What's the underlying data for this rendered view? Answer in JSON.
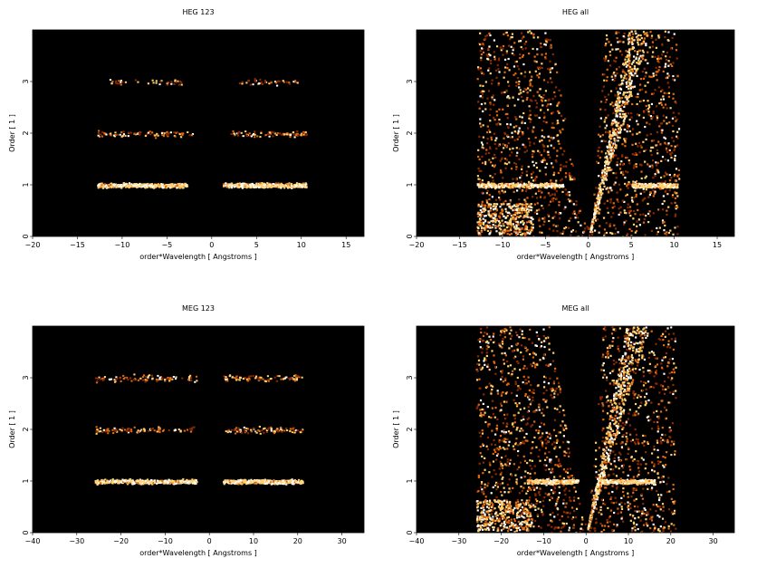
{
  "chart_data": [
    {
      "type": "heatmap",
      "title": "HEG 123",
      "xlabel": "order*Wavelength [ Angstroms ]",
      "ylabel": "Order [ 1 ]",
      "xlim": [
        -20,
        17
      ],
      "ylim": [
        0,
        4
      ],
      "xticks": [
        -20,
        -15,
        -10,
        -5,
        0,
        5,
        10,
        15
      ],
      "yticks": [
        0,
        1,
        2,
        3
      ],
      "background": "#000000",
      "bands": [
        {
          "order": 1,
          "x_ranges": [
            [
              -12.8,
              -2.8
            ],
            [
              1.2,
              10.5
            ]
          ],
          "density": "high"
        },
        {
          "order": 2,
          "x_ranges": [
            [
              -12.8,
              -2.2
            ],
            [
              2.0,
              10.5
            ]
          ],
          "density": "low"
        },
        {
          "order": 3,
          "x_ranges": [
            [
              -11.5,
              -3.0
            ],
            [
              3.0,
              9.5
            ]
          ],
          "density": "very-low"
        }
      ]
    },
    {
      "type": "heatmap",
      "title": "HEG all",
      "xlabel": "order*Wavelength [ Angstroms ]",
      "ylabel": "Order [ 1 ]",
      "xlim": [
        -20,
        17
      ],
      "ylim": [
        0,
        4
      ],
      "xticks": [
        -20,
        -15,
        -10,
        -5,
        0,
        5,
        10,
        15
      ],
      "yticks": [
        0,
        1,
        2,
        3
      ],
      "background": "#000000",
      "bands": [
        {
          "order": 1,
          "x_ranges": [
            [
              -13,
              -3
            ],
            [
              5,
              10.3
            ]
          ],
          "density": "high"
        }
      ],
      "fill_region_x": [
        -13,
        10.5
      ]
    },
    {
      "type": "heatmap",
      "title": "MEG 123",
      "xlabel": "order*Wavelength [ Angstroms ]",
      "ylabel": "Order [ 1 ]",
      "xlim": [
        -40,
        35
      ],
      "ylim": [
        0,
        4
      ],
      "xticks": [
        -40,
        -30,
        -20,
        -10,
        0,
        10,
        20,
        30
      ],
      "yticks": [
        0,
        1,
        2,
        3
      ],
      "background": "#000000",
      "bands": [
        {
          "order": 1,
          "x_ranges": [
            [
              -26,
              -3
            ],
            [
              3,
              21
            ]
          ],
          "density": "high"
        },
        {
          "order": 2,
          "x_ranges": [
            [
              -26,
              -3
            ],
            [
              3,
              21
            ]
          ],
          "density": "low"
        },
        {
          "order": 3,
          "x_ranges": [
            [
              -26,
              -3
            ],
            [
              3,
              21
            ]
          ],
          "density": "low"
        }
      ]
    },
    {
      "type": "heatmap",
      "title": "MEG all",
      "xlabel": "order*Wavelength [ Angstroms ]",
      "ylabel": "Order [ 1 ]",
      "xlim": [
        -40,
        35
      ],
      "ylim": [
        0,
        4
      ],
      "xticks": [
        -40,
        -30,
        -20,
        -10,
        0,
        10,
        20,
        30
      ],
      "yticks": [
        0,
        1,
        2,
        3
      ],
      "background": "#000000",
      "bands": [
        {
          "order": 1,
          "x_ranges": [
            [
              -14,
              -2
            ],
            [
              3,
              16
            ]
          ],
          "density": "high"
        }
      ],
      "fill_region_x": [
        -26,
        21
      ]
    }
  ],
  "colors": {
    "background": "#000000",
    "low": "#8b2a00",
    "mid": "#e06a10",
    "high": "#ffd070",
    "max": "#ffffff"
  }
}
